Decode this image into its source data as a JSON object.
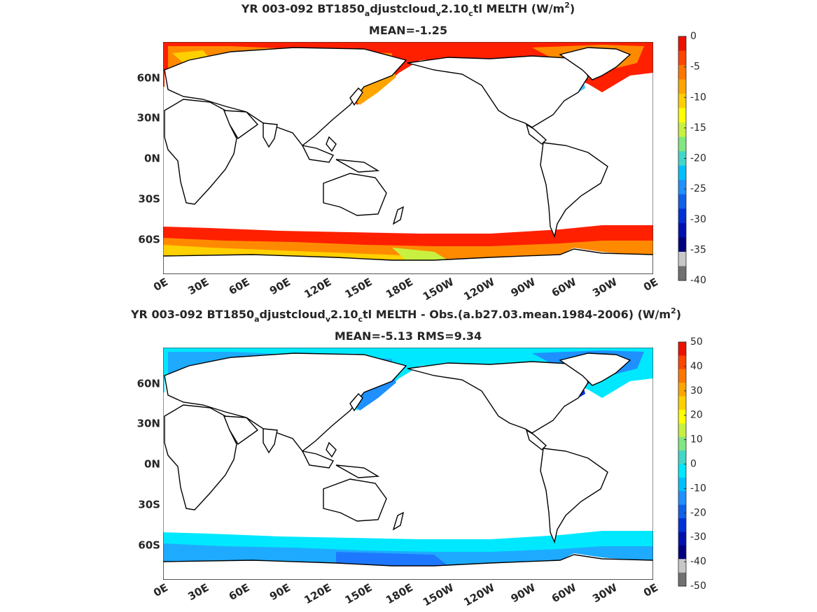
{
  "chart_data": [
    {
      "type": "heatmap",
      "title_parts": [
        "YR 003-092 BT1850",
        "a",
        "djustcloud",
        "v",
        "2.10",
        "c",
        "tl  MELTH (W/m",
        "2",
        ")"
      ],
      "subtitle": "MEAN=-1.25",
      "x_tick_labels": [
        "0E",
        "30E",
        "60E",
        "90E",
        "120E",
        "150E",
        "180E",
        "150W",
        "120W",
        "90W",
        "60W",
        "30W",
        "0E"
      ],
      "y_tick_labels": [
        "60N",
        "30N",
        "0N",
        "30S",
        "60S"
      ],
      "y_tick_values": [
        60,
        30,
        0,
        -30,
        -60
      ],
      "xlim": [
        0,
        360
      ],
      "ylim": [
        -79,
        85
      ],
      "colorbar": {
        "min": -40,
        "max": 0,
        "tick_labels": [
          "0",
          "-5",
          "-10",
          "-15",
          "-20",
          "-25",
          "-30",
          "-35",
          "-40"
        ],
        "tick_values": [
          0,
          -5,
          -10,
          -15,
          -20,
          -25,
          -30,
          -35,
          -40
        ],
        "colors_top_to_bottom": [
          "#ee1100",
          "#ff4400",
          "#ff7700",
          "#ffa500",
          "#ffd000",
          "#ffff00",
          "#c8f040",
          "#80e880",
          "#40d8c8",
          "#00c0ff",
          "#1e90ff",
          "#1060e8",
          "#0030d8",
          "#0010b0",
          "#000080",
          "#c8c8c8",
          "#707070"
        ]
      }
    },
    {
      "type": "heatmap",
      "title_parts": [
        "YR 003-092 BT1850",
        "a",
        "djustcloud",
        "v",
        "2.10",
        "c",
        "tl MELTH - Obs.(a.b27.03.mean.1984-2006) (W/m",
        "2",
        ")"
      ],
      "subtitle": "MEAN=-5.13 RMS=9.34",
      "x_tick_labels": [
        "0E",
        "30E",
        "60E",
        "90E",
        "120E",
        "150E",
        "180E",
        "150W",
        "120W",
        "90W",
        "60W",
        "30W",
        "0E"
      ],
      "y_tick_labels": [
        "60N",
        "30N",
        "0N",
        "30S",
        "60S"
      ],
      "y_tick_values": [
        60,
        30,
        0,
        -30,
        -60
      ],
      "xlim": [
        0,
        360
      ],
      "ylim": [
        -79,
        85
      ],
      "colorbar": {
        "min": -50,
        "max": 50,
        "tick_labels": [
          "50",
          "40",
          "30",
          "20",
          "10",
          "0",
          "-10",
          "-20",
          "-30",
          "-40",
          "-50"
        ],
        "tick_values": [
          50,
          40,
          30,
          20,
          10,
          0,
          -10,
          -20,
          -30,
          -40,
          -50
        ],
        "colors_top_to_bottom": [
          "#ee1100",
          "#ff4400",
          "#ff7700",
          "#ffa500",
          "#ffd000",
          "#ffff00",
          "#c8f040",
          "#80e880",
          "#40d8c8",
          "#00e8ff",
          "#00c0ff",
          "#1e90ff",
          "#1060e8",
          "#0030d8",
          "#0010b0",
          "#000080",
          "#c8c8c8",
          "#707070"
        ]
      }
    }
  ]
}
